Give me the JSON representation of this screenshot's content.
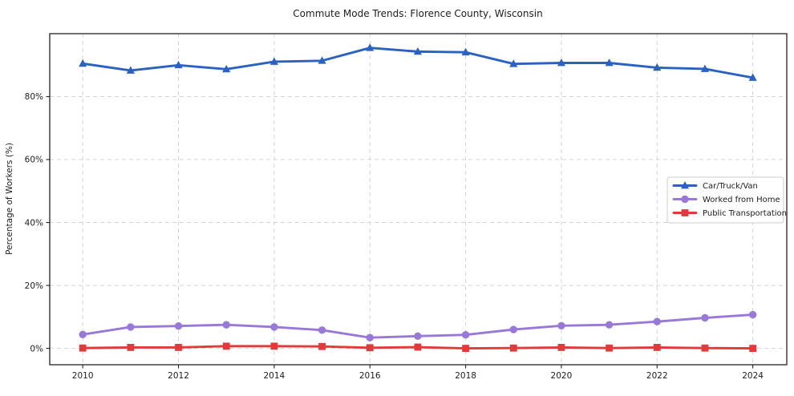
{
  "chart_data": {
    "type": "line",
    "title": "Commute Mode Trends: Florence County, Wisconsin",
    "xlabel": "",
    "ylabel": "Percentage of Workers (%)",
    "x": [
      2010,
      2011,
      2012,
      2013,
      2014,
      2015,
      2016,
      2017,
      2018,
      2019,
      2020,
      2021,
      2022,
      2023,
      2024
    ],
    "x_ticks": [
      2010,
      2012,
      2014,
      2016,
      2018,
      2020,
      2022,
      2024
    ],
    "x_tick_labels": [
      "2010",
      "2012",
      "2014",
      "2016",
      "2018",
      "2020",
      "2022",
      "2024"
    ],
    "y_ticks": [
      0,
      20,
      40,
      60,
      80
    ],
    "y_tick_labels": [
      "0%",
      "20%",
      "40%",
      "60%",
      "80%"
    ],
    "xlim": [
      2009.31,
      2024.71
    ],
    "ylim": [
      -5.2,
      100.0
    ],
    "grid": true,
    "grid_style": "dashed",
    "legend_position": "center-right",
    "series": [
      {
        "name": "Car/Truck/Van",
        "color": "#2a62c4",
        "marker": "triangle",
        "values": [
          90.5,
          88.3,
          90.0,
          88.7,
          91.1,
          91.4,
          95.5,
          94.3,
          94.1,
          90.4,
          90.7,
          90.7,
          89.2,
          88.8,
          86.0
        ]
      },
      {
        "name": "Worked from Home",
        "color": "#9879d9",
        "marker": "circle",
        "values": [
          4.4,
          6.8,
          7.1,
          7.5,
          6.8,
          5.8,
          3.4,
          3.9,
          4.3,
          6.0,
          7.2,
          7.5,
          8.5,
          9.7,
          10.7
        ]
      },
      {
        "name": "Public Transportation",
        "color": "#e23a3a",
        "marker": "square",
        "values": [
          0.1,
          0.3,
          0.3,
          0.7,
          0.7,
          0.6,
          0.2,
          0.4,
          0.0,
          0.1,
          0.3,
          0.1,
          0.3,
          0.1,
          0.0
        ]
      }
    ],
    "colors": {
      "grid": "#d4d4d4",
      "frame": "#222222",
      "text": "#1c1c1c",
      "background": "#ffffff",
      "legend_border": "#cccccc"
    }
  }
}
